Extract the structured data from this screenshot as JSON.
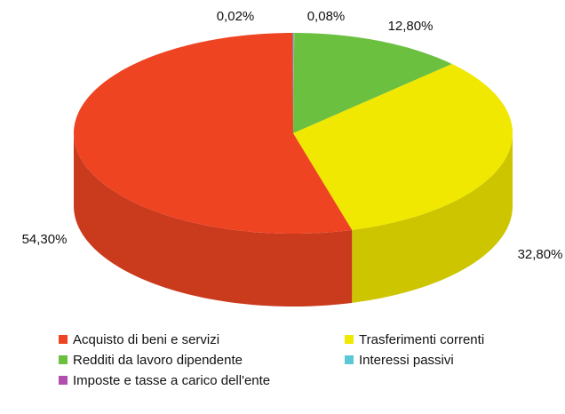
{
  "chart_data": {
    "type": "pie",
    "categories": [
      "Interessi passivi",
      "Redditi da lavoro dipendente",
      "Trasferimenti correnti",
      "Acquisto di beni e servizi",
      "Imposte e tasse a carico dell'ente"
    ],
    "values": [
      0.08,
      12.8,
      32.8,
      54.3,
      0.02
    ],
    "value_labels": [
      "0,08%",
      "12,80%",
      "32,80%",
      "54,30%",
      "0,02%"
    ],
    "colors": [
      "#5bc8d8",
      "#6cc040",
      "#f0e800",
      "#ee4422",
      "#b04fb0"
    ]
  }
}
